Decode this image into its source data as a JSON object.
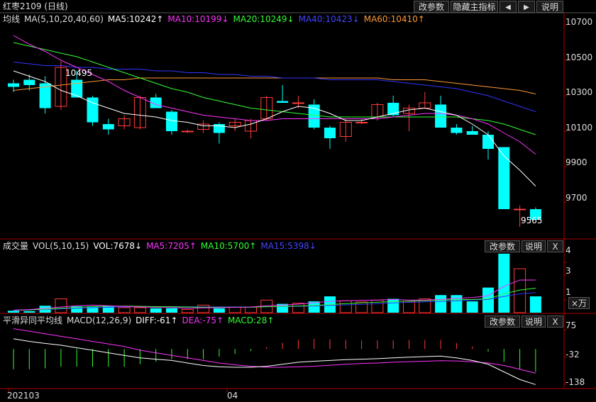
{
  "title": "红枣2109 (日线)",
  "price_header": {
    "name": "均线",
    "indicator": "MA(5,10,20,40,60)",
    "ma5": "MA5:10242↑",
    "ma10": "MA10:10199↓",
    "ma20": "MA20:10249↓",
    "ma40": "MA40:10423↓",
    "ma60": "MA60:10410↑"
  },
  "vol_header": {
    "name": "成交量",
    "indicator": "VOL(5,10,15)",
    "vol": "VOL:7678↓",
    "ma5": "MA5:7205↑",
    "ma10": "MA10:5700↑",
    "ma15": "MA15:5398↓"
  },
  "macd_header": {
    "name": "平滑异同平均线",
    "indicator": "MACD(12,26,9)",
    "diff": "DIFF:-61↑",
    "dea": "DEA:-75↑",
    "macd": "MACD:28↑"
  },
  "buttons": {
    "modify_params": "改参数",
    "hide_main": "隐藏主指标",
    "prev": "◀",
    "next": "▶",
    "help": "说明",
    "close": "X"
  },
  "axis": {
    "price_ticks": [
      "10700",
      "10500",
      "10300",
      "10100",
      "9900",
      "9700"
    ],
    "vol_ticks": [
      "4",
      "3",
      "1"
    ],
    "vol_unit": "×万",
    "macd_ticks": [
      "75",
      "-32",
      "-138"
    ],
    "dates": [
      "202103",
      "04"
    ]
  },
  "annotations": {
    "high": "10495",
    "low": "9565"
  },
  "colors": {
    "up": "#ff3b3b",
    "down": "#00ffff",
    "ma5": "#ffffff",
    "ma10": "#ff33ff",
    "ma20": "#33ff33",
    "ma40": "#3333ff",
    "ma60": "#ff9933"
  },
  "chart_data": {
    "type": "candlestick",
    "price_ylim": [
      9500,
      10760
    ],
    "candles": [
      {
        "o": 10370,
        "h": 10390,
        "l": 10320,
        "c": 10350
      },
      {
        "o": 10390,
        "h": 10420,
        "l": 10330,
        "c": 10360
      },
      {
        "o": 10370,
        "h": 10410,
        "l": 10200,
        "c": 10230
      },
      {
        "o": 10240,
        "h": 10495,
        "l": 10220,
        "c": 10460
      },
      {
        "o": 10390,
        "h": 10440,
        "l": 10290,
        "c": 10290
      },
      {
        "o": 10290,
        "h": 10300,
        "l": 10130,
        "c": 10150
      },
      {
        "o": 10140,
        "h": 10170,
        "l": 10080,
        "c": 10110
      },
      {
        "o": 10130,
        "h": 10190,
        "l": 10110,
        "c": 10170
      },
      {
        "o": 10120,
        "h": 10300,
        "l": 10110,
        "c": 10290
      },
      {
        "o": 10290,
        "h": 10310,
        "l": 10230,
        "c": 10230
      },
      {
        "o": 10210,
        "h": 10220,
        "l": 10080,
        "c": 10100
      },
      {
        "o": 10100,
        "h": 10110,
        "l": 10090,
        "c": 10100
      },
      {
        "o": 10110,
        "h": 10160,
        "l": 10090,
        "c": 10140
      },
      {
        "o": 10140,
        "h": 10150,
        "l": 10030,
        "c": 10090
      },
      {
        "o": 10130,
        "h": 10170,
        "l": 10100,
        "c": 10150
      },
      {
        "o": 10100,
        "h": 10170,
        "l": 10060,
        "c": 10160
      },
      {
        "o": 10170,
        "h": 10300,
        "l": 10160,
        "c": 10290
      },
      {
        "o": 10270,
        "h": 10360,
        "l": 10260,
        "c": 10260
      },
      {
        "o": 10260,
        "h": 10300,
        "l": 10230,
        "c": 10260
      },
      {
        "o": 10250,
        "h": 10280,
        "l": 10110,
        "c": 10120
      },
      {
        "o": 10120,
        "h": 10130,
        "l": 10000,
        "c": 10060
      },
      {
        "o": 10070,
        "h": 10170,
        "l": 10040,
        "c": 10150
      },
      {
        "o": 10150,
        "h": 10170,
        "l": 10140,
        "c": 10150
      },
      {
        "o": 10180,
        "h": 10260,
        "l": 10160,
        "c": 10250
      },
      {
        "o": 10260,
        "h": 10300,
        "l": 10180,
        "c": 10190
      },
      {
        "o": 10200,
        "h": 10250,
        "l": 10100,
        "c": 10230
      },
      {
        "o": 10230,
        "h": 10320,
        "l": 10230,
        "c": 10260
      },
      {
        "o": 10250,
        "h": 10300,
        "l": 10120,
        "c": 10120
      },
      {
        "o": 10120,
        "h": 10140,
        "l": 10080,
        "c": 10090
      },
      {
        "o": 10100,
        "h": 10130,
        "l": 10080,
        "c": 10080
      },
      {
        "o": 10080,
        "h": 10100,
        "l": 9940,
        "c": 10000
      },
      {
        "o": 10010,
        "h": 10010,
        "l": 9660,
        "c": 9660
      },
      {
        "o": 9660,
        "h": 9680,
        "l": 9560,
        "c": 9660
      },
      {
        "o": 9660,
        "h": 9670,
        "l": 9600,
        "c": 9600
      }
    ],
    "ma5": [
      10440,
      10410,
      10380,
      10330,
      10300,
      10260,
      10230,
      10200,
      10190,
      10180,
      10160,
      10150,
      10130,
      10130,
      10120,
      10140,
      10170,
      10210,
      10240,
      10230,
      10200,
      10160,
      10160,
      10180,
      10200,
      10220,
      10230,
      10210,
      10190,
      10140,
      10080,
      9960,
      9880,
      9790
    ],
    "ma10": [
      10640,
      10590,
      10550,
      10500,
      10460,
      10420,
      10380,
      10330,
      10290,
      10250,
      10230,
      10210,
      10190,
      10180,
      10170,
      10160,
      10160,
      10170,
      10170,
      10170,
      10170,
      10170,
      10170,
      10170,
      10180,
      10190,
      10200,
      10200,
      10190,
      10170,
      10140,
      10090,
      10040,
      9970
    ],
    "ma20": [
      10600,
      10580,
      10560,
      10540,
      10520,
      10490,
      10460,
      10430,
      10400,
      10370,
      10340,
      10320,
      10290,
      10270,
      10250,
      10230,
      10220,
      10210,
      10200,
      10190,
      10180,
      10180,
      10180,
      10180,
      10180,
      10180,
      10180,
      10180,
      10180,
      10170,
      10160,
      10140,
      10110,
      10080
    ],
    "ma40": [
      10490,
      10480,
      10470,
      10470,
      10460,
      10460,
      10450,
      10450,
      10450,
      10440,
      10440,
      10430,
      10430,
      10420,
      10420,
      10410,
      10410,
      10400,
      10400,
      10400,
      10390,
      10390,
      10390,
      10390,
      10380,
      10370,
      10360,
      10350,
      10340,
      10320,
      10300,
      10270,
      10240,
      10210
    ],
    "ma60": [
      10330,
      10340,
      10350,
      10360,
      10370,
      10380,
      10390,
      10390,
      10400,
      10400,
      10400,
      10400,
      10400,
      10400,
      10400,
      10400,
      10400,
      10400,
      10400,
      10400,
      10400,
      10400,
      10400,
      10400,
      10390,
      10390,
      10390,
      10380,
      10370,
      10360,
      10350,
      10340,
      10330,
      10310
    ],
    "volume_ylim": [
      0,
      4.8
    ],
    "volume": [
      0.15,
      0.12,
      0.55,
      1.1,
      0.5,
      0.5,
      0.5,
      0.4,
      0.4,
      0.35,
      0.35,
      0.25,
      0.6,
      0.35,
      0.45,
      0.45,
      1.0,
      0.7,
      0.75,
      0.9,
      1.3,
      0.95,
      0.85,
      1.0,
      1.1,
      0.9,
      1.1,
      1.4,
      1.4,
      0.9,
      2.0,
      4.7,
      3.5,
      1.3
    ],
    "vol_ma5": [
      0.2,
      0.25,
      0.35,
      0.45,
      0.55,
      0.6,
      0.55,
      0.5,
      0.45,
      0.42,
      0.4,
      0.35,
      0.38,
      0.4,
      0.42,
      0.45,
      0.55,
      0.6,
      0.68,
      0.8,
      0.9,
      0.95,
      0.98,
      1.0,
      1.05,
      1.0,
      1.0,
      1.05,
      1.15,
      1.2,
      1.35,
      2.1,
      2.6,
      2.6
    ],
    "vol_ma10": [
      0.2,
      0.22,
      0.28,
      0.35,
      0.42,
      0.48,
      0.52,
      0.52,
      0.5,
      0.48,
      0.47,
      0.45,
      0.43,
      0.43,
      0.43,
      0.43,
      0.47,
      0.5,
      0.53,
      0.58,
      0.65,
      0.72,
      0.78,
      0.83,
      0.88,
      0.92,
      0.95,
      1.0,
      1.03,
      1.05,
      1.1,
      1.5,
      1.8,
      1.95
    ],
    "vol_ma15": [
      0.2,
      0.21,
      0.25,
      0.3,
      0.35,
      0.4,
      0.43,
      0.45,
      0.47,
      0.48,
      0.48,
      0.47,
      0.46,
      0.46,
      0.46,
      0.45,
      0.47,
      0.48,
      0.5,
      0.53,
      0.58,
      0.62,
      0.66,
      0.72,
      0.78,
      0.82,
      0.86,
      0.9,
      0.95,
      1.0,
      1.05,
      1.3,
      1.5,
      1.6
    ],
    "macd_ylim": [
      -150,
      90
    ],
    "diff": [
      40,
      30,
      22,
      15,
      5,
      -5,
      -15,
      -25,
      -35,
      -40,
      -45,
      -55,
      -65,
      -70,
      -72,
      -72,
      -68,
      -60,
      -52,
      -48,
      -45,
      -42,
      -40,
      -38,
      -35,
      -32,
      -30,
      -28,
      -35,
      -45,
      -60,
      -90,
      -120,
      -140
    ],
    "dea": [
      80,
      70,
      60,
      50,
      40,
      30,
      20,
      10,
      -5,
      -15,
      -25,
      -35,
      -45,
      -55,
      -62,
      -68,
      -72,
      -72,
      -70,
      -68,
      -64,
      -60,
      -57,
      -55,
      -52,
      -50,
      -48,
      -46,
      -47,
      -50,
      -55,
      -65,
      -80,
      -95
    ],
    "macd": [
      -80,
      -80,
      -76,
      -70,
      -70,
      -70,
      -70,
      -70,
      -60,
      -50,
      -40,
      -40,
      -40,
      -30,
      -20,
      -8,
      8,
      24,
      36,
      40,
      38,
      36,
      34,
      34,
      34,
      36,
      36,
      36,
      24,
      10,
      -10,
      -50,
      -80,
      -90
    ]
  }
}
